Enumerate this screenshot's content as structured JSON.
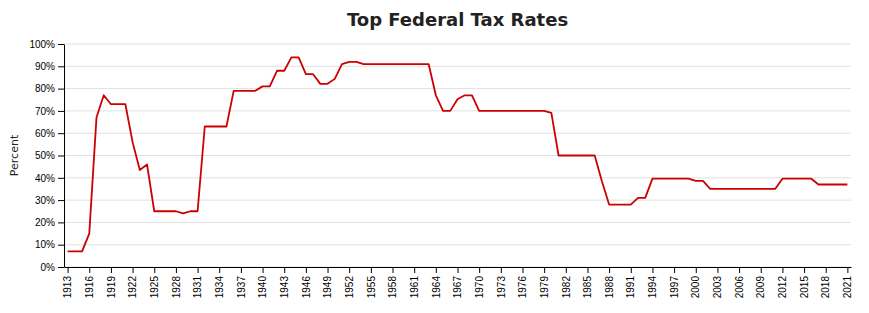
{
  "chart_data": {
    "type": "line",
    "title": "Top Federal Tax Rates",
    "ylabel": "Percent",
    "color": "#CC0000",
    "x": [
      1913,
      1914,
      1915,
      1916,
      1917,
      1918,
      1919,
      1920,
      1921,
      1922,
      1923,
      1924,
      1925,
      1926,
      1927,
      1928,
      1929,
      1930,
      1931,
      1932,
      1933,
      1934,
      1935,
      1936,
      1937,
      1938,
      1939,
      1940,
      1941,
      1942,
      1943,
      1944,
      1945,
      1946,
      1947,
      1948,
      1949,
      1950,
      1951,
      1952,
      1953,
      1954,
      1955,
      1956,
      1957,
      1958,
      1959,
      1960,
      1961,
      1962,
      1963,
      1964,
      1965,
      1966,
      1967,
      1968,
      1969,
      1970,
      1971,
      1972,
      1973,
      1974,
      1975,
      1976,
      1977,
      1978,
      1979,
      1980,
      1981,
      1982,
      1983,
      1984,
      1985,
      1986,
      1987,
      1988,
      1989,
      1990,
      1991,
      1992,
      1993,
      1994,
      1995,
      1996,
      1997,
      1998,
      1999,
      2000,
      2001,
      2002,
      2003,
      2004,
      2005,
      2006,
      2007,
      2008,
      2009,
      2010,
      2011,
      2012,
      2013,
      2014,
      2015,
      2016,
      2017,
      2018,
      2019,
      2020,
      2021
    ],
    "values": [
      7,
      7,
      7,
      15,
      67,
      77,
      73,
      73,
      73,
      56,
      43.5,
      46,
      25,
      25,
      25,
      25,
      24,
      25,
      25,
      63,
      63,
      63,
      63,
      79,
      79,
      79,
      79,
      81,
      81,
      88,
      88,
      94,
      94,
      86.45,
      86.45,
      82.13,
      82.13,
      84.36,
      91,
      92,
      92,
      91,
      91,
      91,
      91,
      91,
      91,
      91,
      91,
      91,
      91,
      77,
      70,
      70,
      75.25,
      77,
      77,
      70,
      70,
      70,
      70,
      70,
      70,
      70,
      70,
      70,
      70,
      69.125,
      50,
      50,
      50,
      50,
      50,
      50,
      38.5,
      28,
      28,
      28,
      28,
      31,
      31,
      39.6,
      39.6,
      39.6,
      39.6,
      39.6,
      39.6,
      38.6,
      38.6,
      35,
      35,
      35,
      35,
      35,
      35,
      35,
      35,
      35,
      35,
      39.6,
      39.6,
      39.6,
      39.6,
      39.6,
      37,
      37,
      37,
      37,
      37
    ],
    "xlim": [
      1912.5,
      2021.5
    ],
    "xticks": [
      1913,
      1916,
      1919,
      1922,
      1925,
      1928,
      1931,
      1934,
      1937,
      1940,
      1943,
      1946,
      1949,
      1952,
      1955,
      1958,
      1961,
      1964,
      1967,
      1970,
      1973,
      1976,
      1979,
      1982,
      1985,
      1988,
      1991,
      1994,
      1997,
      2000,
      2003,
      2006,
      2009,
      2012,
      2015,
      2018,
      2021
    ],
    "ylim": [
      0,
      100
    ],
    "yticks": [
      {
        "value": 0,
        "label": "0%"
      },
      {
        "value": 10,
        "label": "10%"
      },
      {
        "value": 20,
        "label": "20%"
      },
      {
        "value": 30,
        "label": "30%"
      },
      {
        "value": 40,
        "label": "40%"
      },
      {
        "value": 50,
        "label": "50%"
      },
      {
        "value": 60,
        "label": "60%"
      },
      {
        "value": 70,
        "label": "70%"
      },
      {
        "value": 80,
        "label": "80%"
      },
      {
        "value": 90,
        "label": "90%"
      },
      {
        "value": 100,
        "label": "100%"
      }
    ],
    "grid": true
  }
}
